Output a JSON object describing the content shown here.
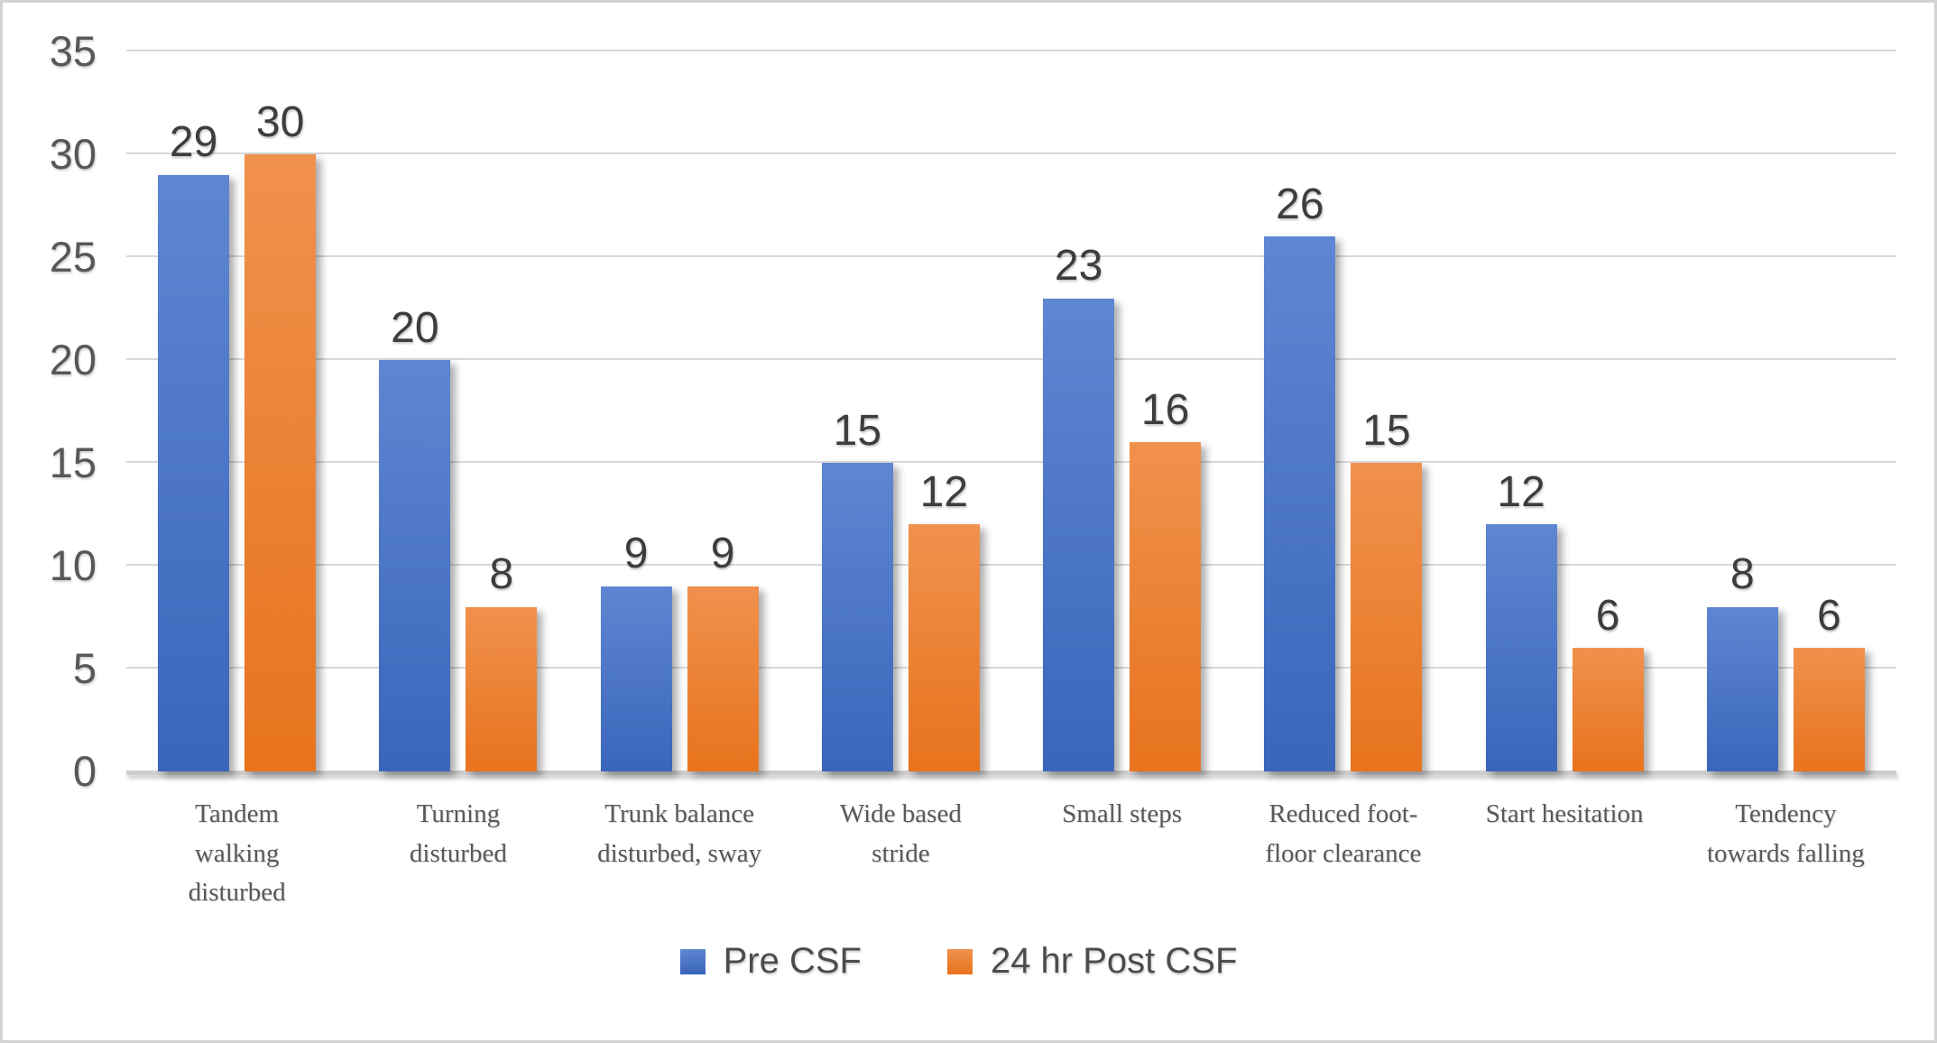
{
  "chart_data": {
    "type": "bar",
    "title": "",
    "xlabel": "",
    "ylabel": "",
    "categories": [
      "Tandem\nwalking\ndisturbed",
      "Turning\ndisturbed",
      "Trunk balance\ndisturbed, sway",
      "Wide based\nstride",
      "Small steps",
      "Reduced foot-\nfloor clearance",
      "Start hesitation",
      "Tendency\ntowards falling"
    ],
    "series": [
      {
        "name": "Pre CSF",
        "values": [
          29,
          20,
          9,
          15,
          23,
          26,
          12,
          8
        ],
        "color": "#4472C4",
        "gradient_top": "#5e86d2",
        "gradient_bottom": "#3a65ba"
      },
      {
        "name": "24 hr Post CSF",
        "values": [
          30,
          8,
          9,
          12,
          16,
          15,
          6,
          6
        ],
        "color": "#ED7D31",
        "gradient_top": "#f0914d",
        "gradient_bottom": "#e8731d"
      }
    ],
    "ylim": [
      0,
      35
    ],
    "yticks": [
      0,
      5,
      10,
      15,
      20,
      25,
      30,
      35
    ],
    "grid": true,
    "legend_position": "bottom",
    "data_labels": true,
    "palette": {
      "gridline": "#d8d8d8",
      "axis_line": "#cdcdcd",
      "tick_label": "#585858",
      "data_label": "#3d3d3d",
      "category_label": "#595959",
      "legend_label": "#4c4c4c",
      "frame_border": "#d2d2d2",
      "background": "#ffffff"
    }
  }
}
